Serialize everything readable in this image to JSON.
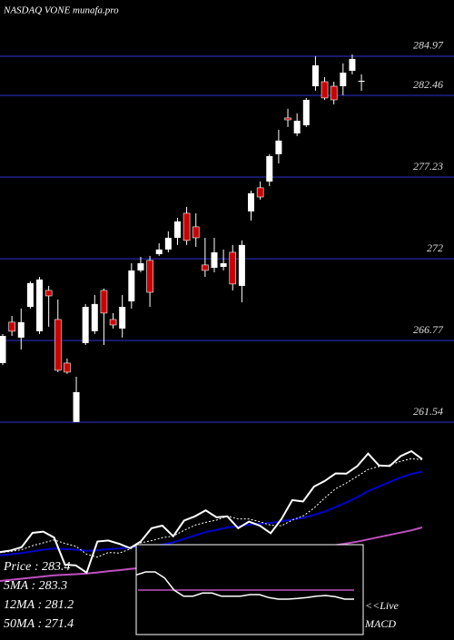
{
  "chart_data": {
    "type": "candlestick",
    "title": "NASDAQ VONE munafa.pro",
    "ylim": [
      261.26,
      288.57
    ],
    "yticks": [
      284.97,
      282.46,
      277.23,
      272,
      266.77,
      261.54
    ],
    "grid": true,
    "grid_color": "#1a1a6e",
    "up_color": "#ffffff",
    "down_color": "#cc0000",
    "open": [
      265.33,
      267.95,
      266.96,
      268.93,
      267.37,
      269.98,
      268.12,
      265.33,
      261.56,
      266.61,
      267.37,
      269.98,
      268.12,
      267.54,
      269.28,
      271.26,
      271.9,
      272.3,
      272.6,
      273.35,
      274.92,
      274.05,
      271.61,
      271.43,
      271.49,
      272.42,
      270.27,
      275.04,
      276.55,
      276.95,
      278.7,
      281.02,
      280.03,
      280.55,
      283.05,
      283.34,
      283.05,
      283.05,
      284.04,
      283.34
    ],
    "high": [
      267.19,
      268.35,
      268.82,
      270.56,
      270.85,
      270.27,
      269.4,
      265.62,
      264.46,
      269.11,
      269.69,
      270.1,
      268.53,
      269.69,
      271.72,
      272.13,
      272.19,
      273.0,
      273.76,
      274.63,
      275.33,
      274.92,
      273.35,
      273.35,
      272.6,
      272.89,
      273.18,
      276.37,
      276.95,
      278.7,
      280.26,
      281.6,
      281.31,
      282.3,
      284.97,
      283.63,
      283.34,
      284.51,
      285.09,
      283.81
    ],
    "low": [
      265.22,
      267.07,
      266.2,
      268.82,
      267.19,
      267.66,
      264.75,
      264.64,
      261.56,
      266.49,
      267.19,
      266.49,
      267.54,
      266.96,
      268.82,
      271.14,
      268.93,
      272.19,
      272.42,
      272.89,
      272.89,
      272.77,
      270.85,
      271.14,
      271.26,
      269.98,
      269.22,
      274.45,
      275.79,
      276.66,
      278.11,
      280.44,
      279.86,
      280.44,
      282.76,
      282.18,
      281.89,
      282.47,
      283.81,
      282.76
    ],
    "close": [
      267.07,
      267.37,
      267.95,
      270.45,
      270.68,
      269.63,
      264.87,
      264.75,
      263.47,
      268.93,
      269.11,
      268.53,
      267.77,
      268.93,
      271.26,
      271.72,
      269.86,
      272.6,
      273.35,
      274.4,
      273.18,
      273.35,
      271.26,
      272.42,
      271.72,
      270.39,
      272.89,
      276.2,
      275.96,
      278.58,
      279.57,
      280.9,
      280.84,
      282.18,
      284.39,
      282.3,
      282.18,
      283.92,
      284.8,
      283.4
    ],
    "series": [
      {
        "name": "5MA",
        "color": "#ffffff",
        "values": [
          267.0,
          267.2,
          267.5,
          268.2,
          268.7,
          269.2,
          268.6,
          268.1,
          266.7,
          266.2,
          267.0,
          266.9,
          267.6,
          268.7,
          269.1,
          269.6,
          269.9,
          270.9,
          271.8,
          272.3,
          272.7,
          273.4,
          272.9,
          272.9,
          272.4,
          271.8,
          271.7,
          272.7,
          273.4,
          274.8,
          276.6,
          278.2,
          279.2,
          280.4,
          281.6,
          282.1,
          282.4,
          283.0,
          283.5,
          283.3
        ]
      },
      {
        "name": "12MA",
        "color": "#0000cc",
        "values": [
          266.5,
          266.7,
          266.9,
          267.2,
          267.5,
          267.7,
          267.6,
          267.5,
          267.3,
          267.4,
          267.6,
          267.7,
          267.9,
          268.0,
          268.1,
          268.4,
          268.8,
          269.4,
          270.0,
          270.6,
          271.0,
          271.4,
          271.6,
          271.9,
          272.1,
          272.2,
          272.5,
          272.8,
          273.1,
          273.6,
          274.2,
          275.0,
          275.8,
          276.7,
          277.8,
          278.6,
          279.4,
          280.2,
          280.8,
          281.2
        ]
      },
      {
        "name": "50MA",
        "color": "#c050c0",
        "values": [
          262.0,
          262.2,
          262.4,
          262.6,
          262.8,
          263.0,
          263.1,
          263.2,
          263.3,
          263.5,
          263.7,
          263.9,
          264.1,
          264.3,
          264.5,
          264.7,
          264.9,
          265.1,
          265.3,
          265.5,
          265.7,
          265.9,
          266.1,
          266.3,
          266.5,
          266.7,
          266.9,
          267.1,
          267.4,
          267.7,
          268.0,
          268.3,
          268.6,
          268.9,
          269.3,
          269.7,
          270.1,
          270.5,
          270.9,
          271.4
        ]
      }
    ],
    "legend": [
      "Price : 283.4",
      "5MA : 283.3",
      "12MA : 281.2",
      "50MA : 271.4"
    ],
    "macd": {
      "title": "MACD",
      "live": "<<Live",
      "color": "#ffffff",
      "signal_color": "#c050c0",
      "values": [
        1.5,
        1.6,
        1.6,
        1.4,
        1.0,
        0.8,
        0.8,
        0.9,
        0.9,
        0.8,
        0.8,
        0.8,
        0.85,
        0.85,
        0.75,
        0.7,
        0.7,
        0.72,
        0.75,
        0.8,
        0.82,
        0.78,
        0.7,
        0.7
      ]
    }
  }
}
